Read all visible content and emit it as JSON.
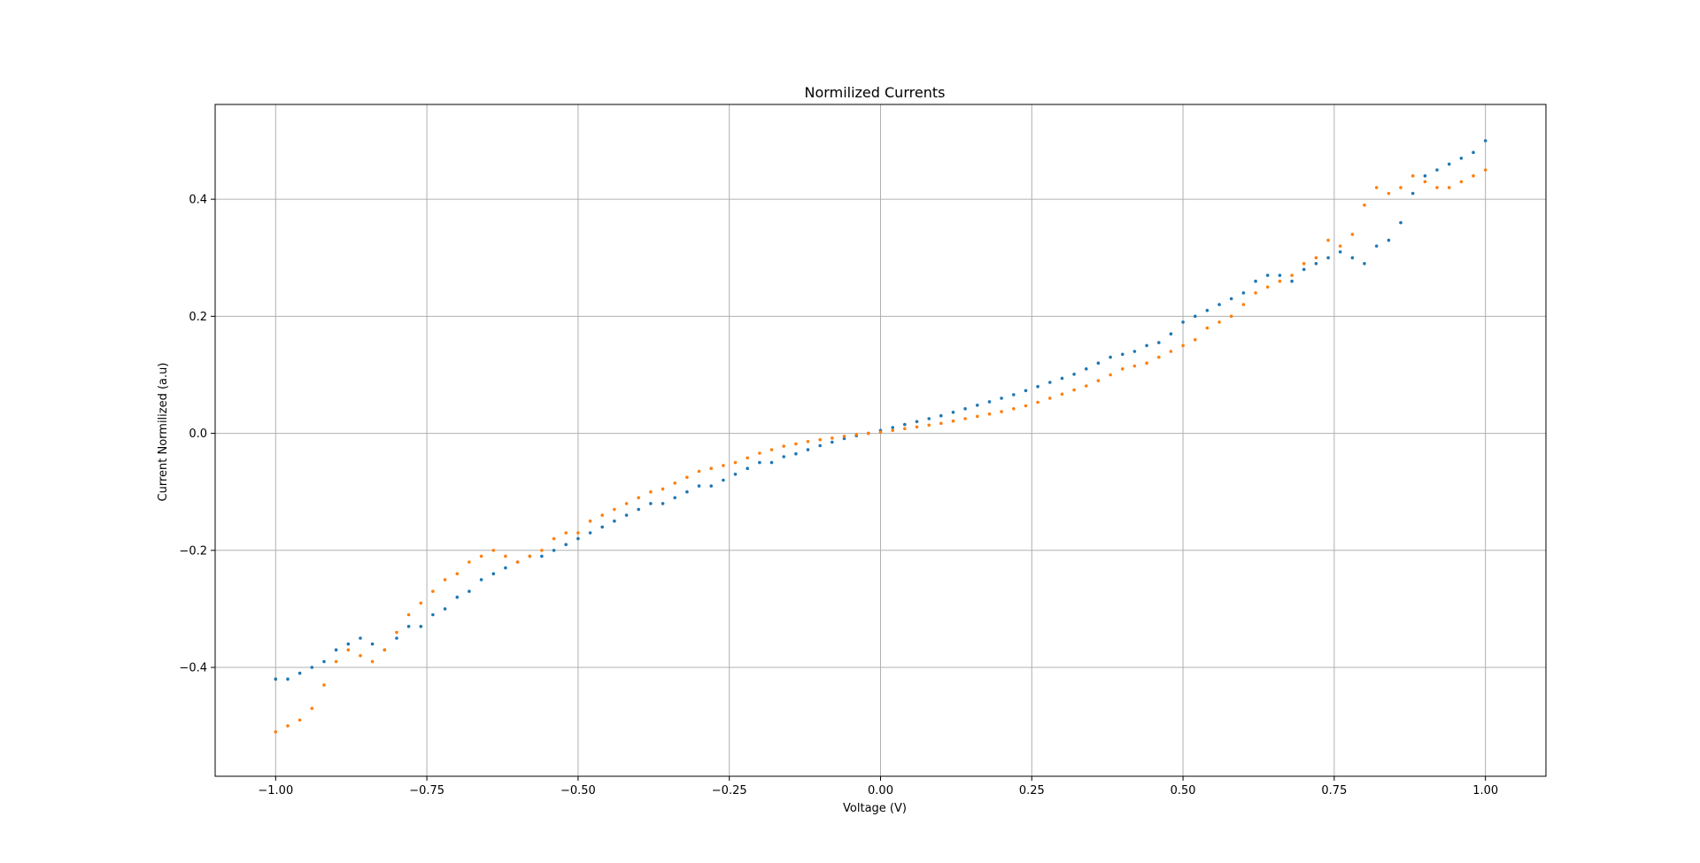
{
  "chart_data": {
    "type": "scatter",
    "title": "Normilized Currents",
    "xlabel": "Voltage (V)",
    "ylabel": "Current Normilized (a.u)",
    "xlim": [
      -1.1,
      1.1
    ],
    "ylim": [
      -0.586,
      0.562
    ],
    "grid": true,
    "legend": "none",
    "xticks": [
      {
        "value": -1.0,
        "label": "−1.00"
      },
      {
        "value": -0.75,
        "label": "−0.75"
      },
      {
        "value": -0.5,
        "label": "−0.50"
      },
      {
        "value": -0.25,
        "label": "−0.25"
      },
      {
        "value": 0.0,
        "label": "0.00"
      },
      {
        "value": 0.25,
        "label": "0.25"
      },
      {
        "value": 0.5,
        "label": "0.50"
      },
      {
        "value": 0.75,
        "label": "0.75"
      },
      {
        "value": 1.0,
        "label": "1.00"
      }
    ],
    "yticks": [
      {
        "value": -0.4,
        "label": "−0.4"
      },
      {
        "value": -0.2,
        "label": "−0.2"
      },
      {
        "value": 0.0,
        "label": "0.0"
      },
      {
        "value": 0.2,
        "label": "0.2"
      },
      {
        "value": 0.4,
        "label": "0.4"
      }
    ],
    "series": [
      {
        "color": "#1f77b4",
        "x": [
          -1.0,
          -0.98,
          -0.96,
          -0.94,
          -0.92,
          -0.9,
          -0.88,
          -0.86,
          -0.84,
          -0.82,
          -0.8,
          -0.78,
          -0.76,
          -0.74,
          -0.72,
          -0.7,
          -0.68,
          -0.66,
          -0.64,
          -0.62,
          -0.6,
          -0.58,
          -0.56,
          -0.54,
          -0.52,
          -0.5,
          -0.48,
          -0.46,
          -0.44,
          -0.42,
          -0.4,
          -0.38,
          -0.36,
          -0.34,
          -0.32,
          -0.3,
          -0.28,
          -0.26,
          -0.24,
          -0.22,
          -0.2,
          -0.18,
          -0.16,
          -0.14,
          -0.12,
          -0.1,
          -0.08,
          -0.06,
          -0.04,
          -0.02,
          0.0,
          0.02,
          0.04,
          0.06,
          0.08,
          0.1,
          0.12,
          0.14,
          0.16,
          0.18,
          0.2,
          0.22,
          0.24,
          0.26,
          0.28,
          0.3,
          0.32,
          0.34,
          0.36,
          0.38,
          0.4,
          0.42,
          0.44,
          0.46,
          0.48,
          0.5,
          0.52,
          0.54,
          0.56,
          0.58,
          0.6,
          0.62,
          0.64,
          0.66,
          0.68,
          0.7,
          0.72,
          0.74,
          0.76,
          0.78,
          0.8,
          0.82,
          0.84,
          0.86,
          0.88,
          0.9,
          0.92,
          0.94,
          0.96,
          0.98,
          1.0
        ],
        "y": [
          -0.42,
          -0.42,
          -0.41,
          -0.4,
          -0.39,
          -0.37,
          -0.36,
          -0.35,
          -0.36,
          -0.37,
          -0.35,
          -0.33,
          -0.33,
          -0.31,
          -0.3,
          -0.28,
          -0.27,
          -0.25,
          -0.24,
          -0.23,
          -0.22,
          -0.21,
          -0.21,
          -0.2,
          -0.19,
          -0.18,
          -0.17,
          -0.16,
          -0.15,
          -0.14,
          -0.13,
          -0.12,
          -0.12,
          -0.11,
          -0.1,
          -0.09,
          -0.09,
          -0.08,
          -0.07,
          -0.06,
          -0.05,
          -0.05,
          -0.04,
          -0.035,
          -0.028,
          -0.021,
          -0.015,
          -0.009,
          -0.004,
          0.0,
          0.005,
          0.01,
          0.015,
          0.02,
          0.025,
          0.03,
          0.036,
          0.042,
          0.048,
          0.054,
          0.06,
          0.066,
          0.073,
          0.08,
          0.087,
          0.094,
          0.101,
          0.11,
          0.12,
          0.13,
          0.135,
          0.14,
          0.15,
          0.155,
          0.17,
          0.19,
          0.2,
          0.21,
          0.22,
          0.23,
          0.24,
          0.26,
          0.27,
          0.27,
          0.26,
          0.28,
          0.29,
          0.3,
          0.31,
          0.3,
          0.29,
          0.32,
          0.33,
          0.36,
          0.41,
          0.44,
          0.45,
          0.46,
          0.47,
          0.48,
          0.5
        ]
      },
      {
        "color": "#ff7f0e",
        "x": [
          -1.0,
          -0.98,
          -0.96,
          -0.94,
          -0.92,
          -0.9,
          -0.88,
          -0.86,
          -0.84,
          -0.82,
          -0.8,
          -0.78,
          -0.76,
          -0.74,
          -0.72,
          -0.7,
          -0.68,
          -0.66,
          -0.64,
          -0.62,
          -0.6,
          -0.58,
          -0.56,
          -0.54,
          -0.52,
          -0.5,
          -0.48,
          -0.46,
          -0.44,
          -0.42,
          -0.4,
          -0.38,
          -0.36,
          -0.34,
          -0.32,
          -0.3,
          -0.28,
          -0.26,
          -0.24,
          -0.22,
          -0.2,
          -0.18,
          -0.16,
          -0.14,
          -0.12,
          -0.1,
          -0.08,
          -0.06,
          -0.04,
          -0.02,
          0.0,
          0.02,
          0.04,
          0.06,
          0.08,
          0.1,
          0.12,
          0.14,
          0.16,
          0.18,
          0.2,
          0.22,
          0.24,
          0.26,
          0.28,
          0.3,
          0.32,
          0.34,
          0.36,
          0.38,
          0.4,
          0.42,
          0.44,
          0.46,
          0.48,
          0.5,
          0.52,
          0.54,
          0.56,
          0.58,
          0.6,
          0.62,
          0.64,
          0.66,
          0.68,
          0.7,
          0.72,
          0.74,
          0.76,
          0.78,
          0.8,
          0.82,
          0.84,
          0.86,
          0.88,
          0.9,
          0.92,
          0.94,
          0.96,
          0.98,
          1.0
        ],
        "y": [
          -0.51,
          -0.5,
          -0.49,
          -0.47,
          -0.43,
          -0.39,
          -0.37,
          -0.38,
          -0.39,
          -0.37,
          -0.34,
          -0.31,
          -0.29,
          -0.27,
          -0.25,
          -0.24,
          -0.22,
          -0.21,
          -0.2,
          -0.21,
          -0.22,
          -0.21,
          -0.2,
          -0.18,
          -0.17,
          -0.17,
          -0.15,
          -0.14,
          -0.13,
          -0.12,
          -0.11,
          -0.1,
          -0.095,
          -0.085,
          -0.075,
          -0.065,
          -0.06,
          -0.055,
          -0.05,
          -0.042,
          -0.034,
          -0.028,
          -0.022,
          -0.018,
          -0.014,
          -0.011,
          -0.008,
          -0.005,
          -0.002,
          0.0,
          0.002,
          0.005,
          0.008,
          0.011,
          0.014,
          0.017,
          0.021,
          0.025,
          0.029,
          0.033,
          0.037,
          0.042,
          0.047,
          0.053,
          0.06,
          0.067,
          0.074,
          0.081,
          0.09,
          0.1,
          0.11,
          0.115,
          0.12,
          0.13,
          0.14,
          0.15,
          0.16,
          0.18,
          0.19,
          0.2,
          0.22,
          0.24,
          0.25,
          0.26,
          0.27,
          0.29,
          0.3,
          0.33,
          0.32,
          0.34,
          0.39,
          0.42,
          0.41,
          0.42,
          0.44,
          0.43,
          0.42,
          0.42,
          0.43,
          0.44,
          0.45
        ]
      }
    ]
  }
}
